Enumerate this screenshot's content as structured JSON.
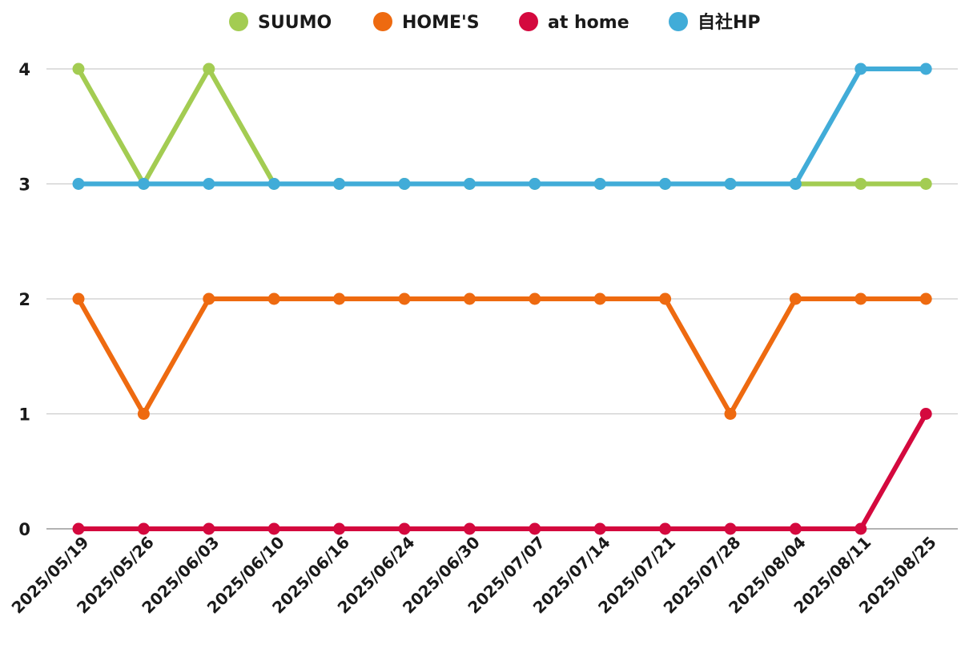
{
  "chart_data": {
    "type": "line",
    "title": "",
    "xlabel": "",
    "ylabel": "",
    "ylim": [
      0,
      4
    ],
    "yticks": [
      "0",
      "1",
      "2",
      "3",
      "4"
    ],
    "grid": true,
    "legend_position": "top-center",
    "categories": [
      "2025/05/19",
      "2025/05/26",
      "2025/06/03",
      "2025/06/10",
      "2025/06/16",
      "2025/06/24",
      "2025/06/30",
      "2025/07/07",
      "2025/07/14",
      "2025/07/21",
      "2025/07/28",
      "2025/08/04",
      "2025/08/11",
      "2025/08/25"
    ],
    "series": [
      {
        "name": "SUUMO",
        "color": "#a3cc52",
        "values": [
          4,
          3,
          4,
          3,
          3,
          3,
          3,
          3,
          3,
          3,
          3,
          3,
          3,
          3
        ]
      },
      {
        "name": "HOME'S",
        "color": "#ee6a10",
        "values": [
          2,
          1,
          2,
          2,
          2,
          2,
          2,
          2,
          2,
          2,
          1,
          2,
          2,
          2
        ]
      },
      {
        "name": "at home",
        "color": "#d4093e",
        "values": [
          0,
          0,
          0,
          0,
          0,
          0,
          0,
          0,
          0,
          0,
          0,
          0,
          0,
          1
        ]
      },
      {
        "name": "自社HP",
        "color": "#41acd8",
        "values": [
          3,
          3,
          3,
          3,
          3,
          3,
          3,
          3,
          3,
          3,
          3,
          3,
          4,
          4
        ]
      }
    ]
  }
}
